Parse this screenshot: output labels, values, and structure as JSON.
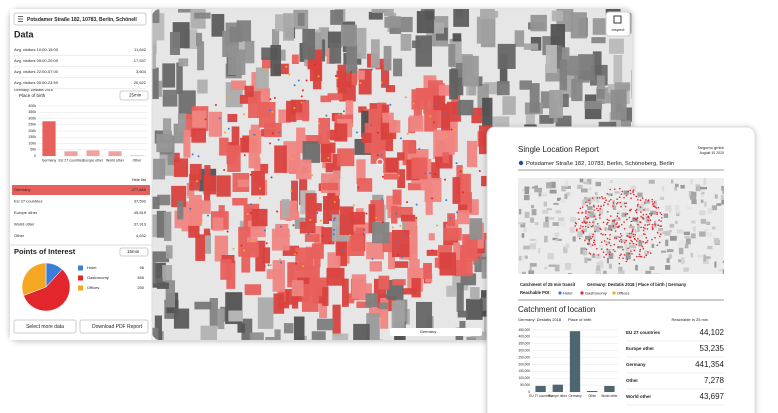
{
  "app": {
    "search": "Potsdamer Straße 182, 10783, Berlin, Schönell",
    "data_title": "Data",
    "visitors": [
      {
        "label": "Avg. visitors 10:00-15:00",
        "value": "11,642"
      },
      {
        "label": "Avg. visitors 09:00-20:00",
        "value": "17,537"
      },
      {
        "label": "Avg. visitors 22:00-07:00",
        "value": "3,604"
      },
      {
        "label": "Avg. visitors 00:00-23:59",
        "value": "20,622"
      }
    ],
    "dataset": "Germany: Destatis 2018",
    "layer": "Place of birth",
    "travel_time": "25min",
    "chart": {
      "type": "bar",
      "categories": [
        "Germany",
        "EU 27 countries",
        "Europe other",
        "World other",
        "Other"
      ],
      "values": [
        277665,
        37592,
        45819,
        37913,
        4632
      ],
      "value_labels": [
        "277,665",
        "37,592",
        "45,819",
        "37,913",
        "4,632"
      ],
      "ylim": [
        0,
        400000
      ],
      "yticks": [
        0,
        {
          "value": 50000,
          "label": "50k"
        },
        {
          "value": 100000,
          "label": "100k"
        },
        {
          "value": 150000,
          "label": "150k"
        },
        {
          "value": 200000,
          "label": "200k"
        },
        {
          "value": 250000,
          "label": "250k"
        },
        {
          "value": 300000,
          "label": "300k"
        },
        {
          "value": 350000,
          "label": "350k"
        },
        {
          "value": 400000,
          "label": "400k"
        }
      ],
      "color": "#efa3a1",
      "highlight_color": "#e8605c"
    },
    "hide_list": "Hide list",
    "poi": {
      "title": "Points of Interest",
      "travel_time": "15min",
      "type": "pie",
      "categories": [
        "Hotel",
        "Gastronomy",
        "Offices"
      ],
      "values": [
        96,
        466,
        250
      ],
      "colors": [
        "#3b7dd8",
        "#e3262b",
        "#f5a623"
      ]
    },
    "buttons": [
      "Select more data",
      "Download PDF Report"
    ]
  },
  "map": {
    "inspect": "Inspect",
    "scale_label": "Germany"
  },
  "report": {
    "title": "Single Location Report",
    "company": "Targomo gmbh",
    "date": "August 10 2020",
    "address": "Potsdamer Straße 182, 10783, Berlin, Schöneberg, Berlin",
    "legend_catchment": "Catchment of 25 min transit",
    "legend_layer": "Germany: Destatis 2018 | Place of birth | Germany",
    "reachable_poi": "Reachable POI:",
    "poi_names": [
      "Hotel",
      "Gastronomy",
      "Offices"
    ],
    "poi_colors": [
      "#3b7dd8",
      "#e3262b",
      "#f5a623"
    ],
    "section_title": "Catchment of location",
    "dataset": "Germany: Destatis 2018",
    "layer": "Place of birth",
    "reachable": "Reachable in 25 min",
    "chart": {
      "type": "bar",
      "categories": [
        "EU 27 countries",
        "Europe other",
        "Germany",
        "Other",
        "World other"
      ],
      "values": [
        44102,
        53235,
        441354,
        7278,
        43697
      ],
      "value_labels": [
        "44,102",
        "53,235",
        "441,354",
        "7,278",
        "43,697"
      ],
      "ylim": [
        0,
        450000
      ],
      "yticks": [
        0,
        {
          "value": 50000,
          "label": "50,000"
        },
        {
          "value": 100000,
          "label": "100,000"
        },
        {
          "value": 150000,
          "label": "150,000"
        },
        {
          "value": 200000,
          "label": "200,000"
        },
        {
          "value": 250000,
          "label": "250,000"
        },
        {
          "value": 300000,
          "label": "300,000"
        },
        {
          "value": 350000,
          "label": "350,000"
        },
        {
          "value": 400000,
          "label": "400,000"
        },
        {
          "value": 450000,
          "label": "450,000"
        }
      ],
      "color": "#4d6670"
    }
  }
}
